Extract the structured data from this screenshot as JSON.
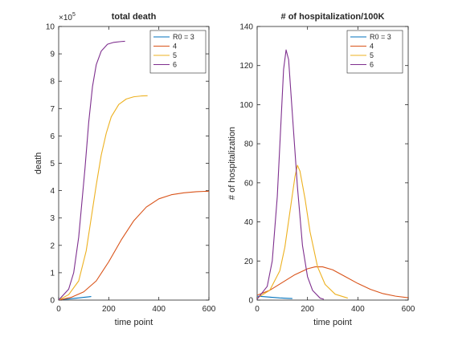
{
  "chart_data": [
    {
      "type": "line",
      "title": "total death",
      "xlabel": "time point",
      "ylabel": "death",
      "xlim": [
        0,
        600
      ],
      "ylim": [
        0,
        1000000
      ],
      "x_ticks": [
        "0",
        "200",
        "400",
        "600"
      ],
      "y_ticks": [
        "0",
        "1",
        "2",
        "3",
        "4",
        "5",
        "6",
        "7",
        "8",
        "9",
        "10"
      ],
      "y_exponent": "×10^5",
      "exponent_base": "×10",
      "exponent_power": "5",
      "grid": false,
      "legend_position": "top-right",
      "series": [
        {
          "name": "R0 = 3",
          "color": "#0072BD",
          "points": [
            [
              0,
              2000
            ],
            [
              20,
              3000
            ],
            [
              40,
              4000
            ],
            [
              60,
              6000
            ],
            [
              80,
              8000
            ],
            [
              100,
              10000
            ],
            [
              120,
              12000
            ],
            [
              130,
              13000
            ]
          ]
        },
        {
          "name": "4",
          "color": "#D95319",
          "points": [
            [
              0,
              0
            ],
            [
              50,
              10000
            ],
            [
              100,
              30000
            ],
            [
              150,
              70000
            ],
            [
              200,
              140000
            ],
            [
              250,
              220000
            ],
            [
              300,
              290000
            ],
            [
              350,
              340000
            ],
            [
              400,
              370000
            ],
            [
              450,
              385000
            ],
            [
              500,
              392000
            ],
            [
              550,
              396000
            ],
            [
              600,
              398000
            ]
          ]
        },
        {
          "name": "5",
          "color": "#EDB120",
          "points": [
            [
              0,
              0
            ],
            [
              40,
              20000
            ],
            [
              80,
              70000
            ],
            [
              110,
              180000
            ],
            [
              130,
              300000
            ],
            [
              150,
              420000
            ],
            [
              170,
              530000
            ],
            [
              190,
              610000
            ],
            [
              210,
              670000
            ],
            [
              240,
              715000
            ],
            [
              270,
              735000
            ],
            [
              300,
              743000
            ],
            [
              330,
              746000
            ],
            [
              355,
              747000
            ]
          ]
        },
        {
          "name": "6",
          "color": "#7E2F8E",
          "points": [
            [
              0,
              0
            ],
            [
              40,
              40000
            ],
            [
              60,
              100000
            ],
            [
              80,
              230000
            ],
            [
              95,
              380000
            ],
            [
              105,
              480000
            ],
            [
              120,
              650000
            ],
            [
              135,
              780000
            ],
            [
              150,
              860000
            ],
            [
              170,
              910000
            ],
            [
              195,
              935000
            ],
            [
              220,
              942000
            ],
            [
              250,
              945000
            ],
            [
              265,
              946000
            ]
          ]
        }
      ]
    },
    {
      "type": "line",
      "title": "# of hospitalization/100K",
      "xlabel": "time point",
      "ylabel": "# of hospitalization",
      "xlim": [
        0,
        600
      ],
      "ylim": [
        0,
        140
      ],
      "x_ticks": [
        "0",
        "200",
        "400",
        "600"
      ],
      "y_ticks": [
        "0",
        "20",
        "40",
        "60",
        "80",
        "100",
        "120",
        "140"
      ],
      "grid": false,
      "legend_position": "top-right",
      "series": [
        {
          "name": "R0 = 3",
          "color": "#0072BD",
          "points": [
            [
              0,
              2
            ],
            [
              30,
              1.7
            ],
            [
              60,
              1.4
            ],
            [
              90,
              1.1
            ],
            [
              120,
              0.9
            ],
            [
              140,
              0.8
            ]
          ]
        },
        {
          "name": "4",
          "color": "#D95319",
          "points": [
            [
              0,
              2.5
            ],
            [
              50,
              5
            ],
            [
              100,
              9
            ],
            [
              150,
              13
            ],
            [
              200,
              16
            ],
            [
              230,
              17
            ],
            [
              260,
              17
            ],
            [
              300,
              15.5
            ],
            [
              350,
              12
            ],
            [
              400,
              8.5
            ],
            [
              450,
              5.5
            ],
            [
              500,
              3.3
            ],
            [
              550,
              2
            ],
            [
              600,
              1.2
            ]
          ]
        },
        {
          "name": "5",
          "color": "#EDB120",
          "points": [
            [
              0,
              1
            ],
            [
              50,
              5
            ],
            [
              90,
              15
            ],
            [
              110,
              27
            ],
            [
              130,
              45
            ],
            [
              150,
              63
            ],
            [
              160,
              69
            ],
            [
              170,
              66
            ],
            [
              190,
              52
            ],
            [
              210,
              35
            ],
            [
              240,
              17
            ],
            [
              270,
              8
            ],
            [
              310,
              3
            ],
            [
              360,
              1
            ]
          ]
        },
        {
          "name": "6",
          "color": "#7E2F8E",
          "points": [
            [
              0,
              0.5
            ],
            [
              40,
              7
            ],
            [
              60,
              20
            ],
            [
              80,
              53
            ],
            [
              95,
              92
            ],
            [
              105,
              118
            ],
            [
              115,
              128
            ],
            [
              125,
              123
            ],
            [
              140,
              95
            ],
            [
              160,
              58
            ],
            [
              180,
              28
            ],
            [
              200,
              12
            ],
            [
              220,
              5
            ],
            [
              250,
              1
            ],
            [
              265,
              0.4
            ]
          ]
        }
      ]
    }
  ]
}
